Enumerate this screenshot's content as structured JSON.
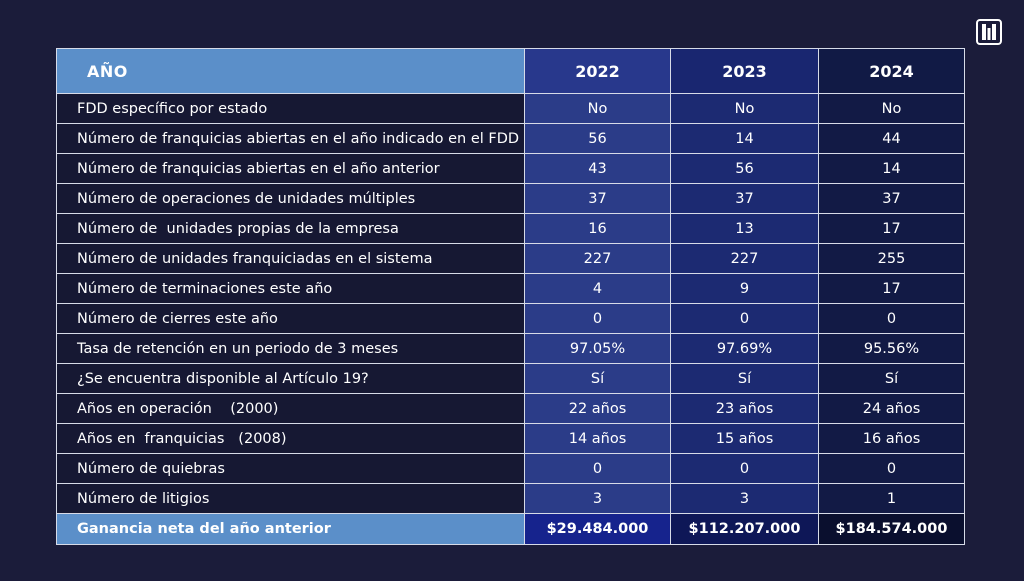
{
  "colors": {
    "background": "#1b1c3a",
    "header_label": "#5b8fc9",
    "col_2022": "#2b3c88",
    "col_2023": "#1c2a72",
    "col_2024": "#121a45",
    "border": "#d7dbe8"
  },
  "logo": {
    "icon": "brand-logo-icon"
  },
  "table": {
    "header": {
      "label": "AÑO",
      "years": [
        "2022",
        "2023",
        "2024"
      ]
    },
    "rows": [
      {
        "label": "FDD específico por estado",
        "values": [
          "No",
          "No",
          "No"
        ]
      },
      {
        "label": "Número de franquicias abiertas en el año indicado en el FDD",
        "values": [
          "56",
          "14",
          "44"
        ]
      },
      {
        "label": "Número de franquicias abiertas en el año anterior",
        "values": [
          "43",
          "56",
          "14"
        ]
      },
      {
        "label": "Número de operaciones de unidades múltiples",
        "values": [
          "37",
          "37",
          "37"
        ]
      },
      {
        "label": "Número de  unidades propias de la empresa",
        "values": [
          "16",
          "13",
          "17"
        ]
      },
      {
        "label": "Número de unidades franquiciadas en el sistema",
        "values": [
          "227",
          "227",
          "255"
        ]
      },
      {
        "label": "Número de terminaciones este año",
        "values": [
          "4",
          "9",
          "17"
        ]
      },
      {
        "label": "Número de cierres este año",
        "values": [
          "0",
          "0",
          "0"
        ]
      },
      {
        "label": "Tasa de retención en un periodo de 3 meses",
        "values": [
          "97.05%",
          "97.69%",
          "95.56%"
        ]
      },
      {
        "label": "¿Se encuentra disponible al Artículo 19?",
        "values": [
          "Sí",
          "Sí",
          "Sí"
        ]
      },
      {
        "label": "Años en operación    (2000)",
        "values": [
          "22 años",
          "23 años",
          "24 años"
        ]
      },
      {
        "label": "Años en  franquicias   (2008)",
        "values": [
          "14 años",
          "15 años",
          "16 años"
        ]
      },
      {
        "label": "Número de quiebras",
        "values": [
          "0",
          "0",
          "0"
        ]
      },
      {
        "label": "Número de litigios",
        "values": [
          "3",
          "3",
          "1"
        ]
      }
    ],
    "footer": {
      "label": "Ganancia neta del año anterior",
      "values": [
        "$29.484.000",
        "$112.207.000",
        "$184.574.000"
      ]
    }
  }
}
